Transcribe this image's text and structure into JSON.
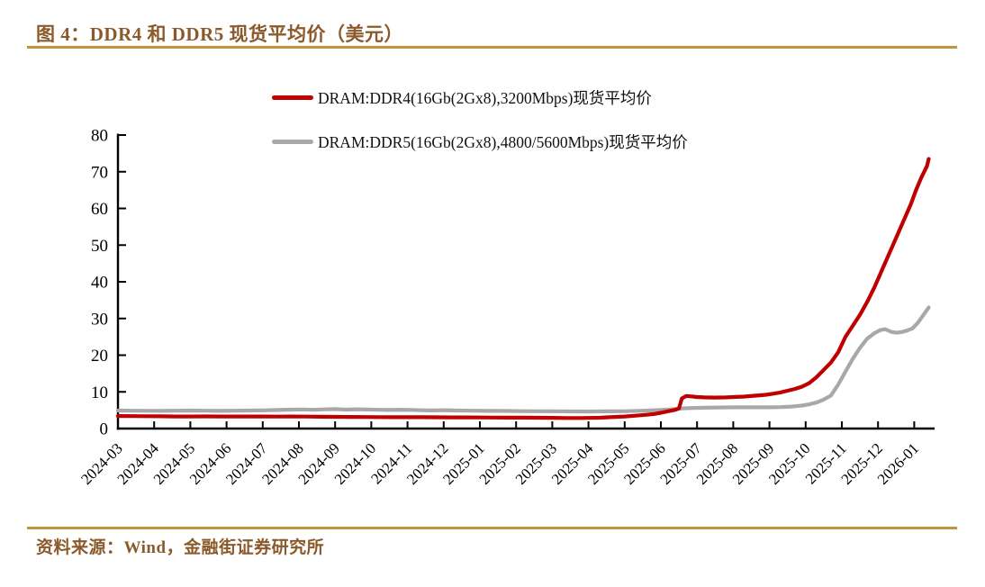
{
  "figure": {
    "title": "图 4：DDR4 和 DDR5 现货平均价（美元）",
    "source_label": "资料来源：Wind，金融街证券研究所"
  },
  "colors": {
    "title_brown": "#8a5a2b",
    "rule_gold": "#c1953a",
    "ddr4_red": "#bf0000",
    "ddr5_gray": "#a8a8a8",
    "axis_black": "#000000"
  },
  "legend": {
    "items": [
      {
        "label": "DRAM:DDR4(16Gb(2Gx8),3200Mbps)现货平均价",
        "color_key": "ddr4_red"
      },
      {
        "label": "DRAM:DDR5(16Gb(2Gx8),4800/5600Mbps)现货平均价",
        "color_key": "ddr5_gray"
      }
    ]
  },
  "chart_data": {
    "type": "line",
    "title": "图 4：DDR4 和 DDR5 现货平均价（美元）",
    "xlabel": "",
    "ylabel": "",
    "ylim": [
      0,
      80
    ],
    "yticks": [
      0,
      10,
      20,
      30,
      40,
      50,
      60,
      70,
      80
    ],
    "grid": false,
    "legend_position": "top-center",
    "x_unit": "month index from 2024-03 (fractional = intra-month date)",
    "categories": [
      "2024-03",
      "2024-04",
      "2024-05",
      "2024-06",
      "2024-07",
      "2024-08",
      "2024-09",
      "2024-10",
      "2024-11",
      "2024-12",
      "2025-01",
      "2025-02",
      "2025-03",
      "2025-04",
      "2025-05",
      "2025-06",
      "2025-07",
      "2025-08",
      "2025-09",
      "2025-10",
      "2025-11",
      "2025-12",
      "2026-01"
    ],
    "series": [
      {
        "name": "DRAM:DDR4(16Gb(2Gx8),3200Mbps)现货平均价",
        "color_key": "ddr4_red",
        "points": [
          [
            0,
            3.4
          ],
          [
            0.4,
            3.38
          ],
          [
            0.8,
            3.36
          ],
          [
            1.2,
            3.33
          ],
          [
            1.6,
            3.3
          ],
          [
            2,
            3.3
          ],
          [
            2.4,
            3.32
          ],
          [
            2.8,
            3.3
          ],
          [
            3.2,
            3.28
          ],
          [
            3.6,
            3.3
          ],
          [
            4,
            3.3
          ],
          [
            4.4,
            3.27
          ],
          [
            4.8,
            3.3
          ],
          [
            5.2,
            3.26
          ],
          [
            5.6,
            3.22
          ],
          [
            6,
            3.2
          ],
          [
            6.4,
            3.17
          ],
          [
            6.8,
            3.15
          ],
          [
            7.2,
            3.12
          ],
          [
            7.6,
            3.1
          ],
          [
            8,
            3.1
          ],
          [
            8.4,
            3.08
          ],
          [
            8.8,
            3.06
          ],
          [
            9.2,
            3.05
          ],
          [
            9.6,
            3.04
          ],
          [
            10,
            3.02
          ],
          [
            10.4,
            3.0
          ],
          [
            10.8,
            2.98
          ],
          [
            11.2,
            2.96
          ],
          [
            11.6,
            2.95
          ],
          [
            12,
            2.92
          ],
          [
            12.4,
            2.88
          ],
          [
            12.8,
            2.87
          ],
          [
            13,
            2.9
          ],
          [
            13.3,
            2.95
          ],
          [
            13.6,
            3.08
          ],
          [
            14,
            3.3
          ],
          [
            14.3,
            3.5
          ],
          [
            14.6,
            3.75
          ],
          [
            14.8,
            3.95
          ],
          [
            15,
            4.3
          ],
          [
            15.2,
            4.7
          ],
          [
            15.4,
            5.1
          ],
          [
            15.5,
            5.5
          ],
          [
            15.58,
            8.2
          ],
          [
            15.7,
            8.85
          ],
          [
            15.85,
            8.75
          ],
          [
            16,
            8.6
          ],
          [
            16.2,
            8.5
          ],
          [
            16.5,
            8.45
          ],
          [
            16.8,
            8.5
          ],
          [
            17,
            8.6
          ],
          [
            17.3,
            8.7
          ],
          [
            17.6,
            8.95
          ],
          [
            17.9,
            9.2
          ],
          [
            18.1,
            9.5
          ],
          [
            18.3,
            9.85
          ],
          [
            18.5,
            10.3
          ],
          [
            18.7,
            10.8
          ],
          [
            18.9,
            11.4
          ],
          [
            19.1,
            12.4
          ],
          [
            19.3,
            14.0
          ],
          [
            19.5,
            16.0
          ],
          [
            19.7,
            18.0
          ],
          [
            19.9,
            20.8
          ],
          [
            20.1,
            25.0
          ],
          [
            20.3,
            28.0
          ],
          [
            20.5,
            31.0
          ],
          [
            20.7,
            34.5
          ],
          [
            20.9,
            38.5
          ],
          [
            21.1,
            43.0
          ],
          [
            21.3,
            47.5
          ],
          [
            21.5,
            52.0
          ],
          [
            21.7,
            56.5
          ],
          [
            21.9,
            61.0
          ],
          [
            22.05,
            65.0
          ],
          [
            22.2,
            68.5
          ],
          [
            22.3,
            70.5
          ],
          [
            22.35,
            71.5
          ],
          [
            22.4,
            73.5
          ]
        ]
      },
      {
        "name": "DRAM:DDR5(16Gb(2Gx8),4800/5600Mbps)现货平均价",
        "color_key": "ddr5_gray",
        "points": [
          [
            0,
            4.9
          ],
          [
            0.4,
            4.87
          ],
          [
            0.8,
            4.84
          ],
          [
            1.2,
            4.82
          ],
          [
            1.6,
            4.85
          ],
          [
            2,
            4.9
          ],
          [
            2.4,
            4.85
          ],
          [
            2.8,
            4.8
          ],
          [
            3.2,
            4.85
          ],
          [
            3.6,
            4.9
          ],
          [
            4,
            4.95
          ],
          [
            4.4,
            5.05
          ],
          [
            4.8,
            5.15
          ],
          [
            5.1,
            5.2
          ],
          [
            5.4,
            5.1
          ],
          [
            5.7,
            5.22
          ],
          [
            6,
            5.3
          ],
          [
            6.3,
            5.15
          ],
          [
            6.6,
            5.25
          ],
          [
            6.9,
            5.18
          ],
          [
            7.2,
            5.1
          ],
          [
            7.5,
            5.05
          ],
          [
            7.8,
            5.12
          ],
          [
            8.1,
            5.08
          ],
          [
            8.4,
            4.98
          ],
          [
            8.7,
            4.93
          ],
          [
            9,
            5.0
          ],
          [
            9.4,
            4.92
          ],
          [
            9.8,
            4.85
          ],
          [
            10.2,
            4.82
          ],
          [
            10.6,
            4.8
          ],
          [
            11,
            4.76
          ],
          [
            11.5,
            4.72
          ],
          [
            12,
            4.7
          ],
          [
            12.5,
            4.66
          ],
          [
            13,
            4.65
          ],
          [
            13.5,
            4.68
          ],
          [
            14,
            4.72
          ],
          [
            14.5,
            4.85
          ],
          [
            15,
            5.05
          ],
          [
            15.3,
            5.25
          ],
          [
            15.6,
            5.5
          ],
          [
            15.9,
            5.62
          ],
          [
            16.2,
            5.68
          ],
          [
            16.5,
            5.72
          ],
          [
            16.8,
            5.76
          ],
          [
            17.1,
            5.78
          ],
          [
            17.4,
            5.8
          ],
          [
            17.7,
            5.79
          ],
          [
            18,
            5.78
          ],
          [
            18.3,
            5.85
          ],
          [
            18.6,
            6.0
          ],
          [
            18.9,
            6.25
          ],
          [
            19.1,
            6.6
          ],
          [
            19.3,
            7.1
          ],
          [
            19.5,
            7.9
          ],
          [
            19.7,
            9.0
          ],
          [
            19.9,
            12.0
          ],
          [
            20.1,
            15.5
          ],
          [
            20.3,
            19.0
          ],
          [
            20.5,
            22.0
          ],
          [
            20.7,
            24.5
          ],
          [
            20.9,
            26.0
          ],
          [
            21.05,
            26.8
          ],
          [
            21.2,
            27.1
          ],
          [
            21.35,
            26.4
          ],
          [
            21.5,
            26.1
          ],
          [
            21.65,
            26.3
          ],
          [
            21.8,
            26.7
          ],
          [
            21.95,
            27.3
          ],
          [
            22.1,
            28.8
          ],
          [
            22.2,
            30.2
          ],
          [
            22.3,
            31.6
          ],
          [
            22.4,
            33.0
          ]
        ]
      }
    ]
  }
}
